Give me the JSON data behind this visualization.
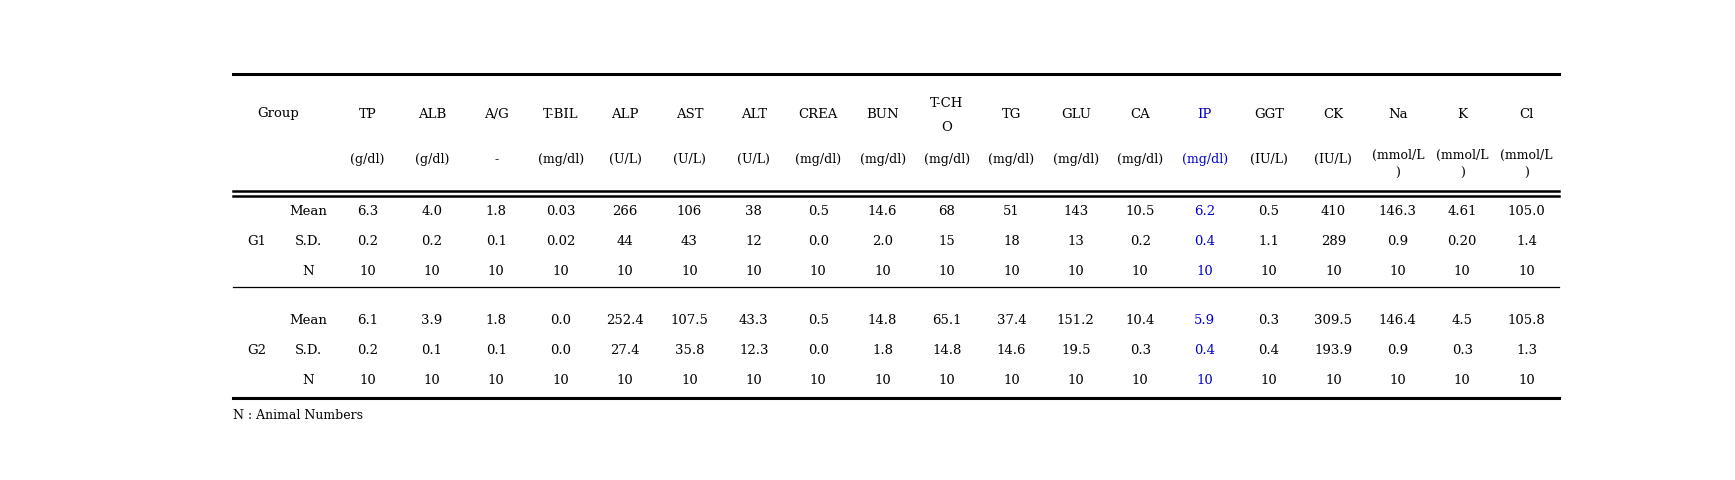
{
  "col_names": [
    "TP",
    "ALB",
    "A/G",
    "T-BIL",
    "ALP",
    "AST",
    "ALT",
    "CREA",
    "BUN",
    "T-CHO",
    "TG",
    "GLU",
    "CA",
    "IP",
    "GGT",
    "CK",
    "Na",
    "K",
    "Cl"
  ],
  "col_units": [
    "(g/dl)",
    "(g/dl)",
    "-",
    "(mg/dl)",
    "(U/L)",
    "(U/L)",
    "(U/L)",
    "(mg/dl)",
    "(mg/dl)",
    "(mg/dl)",
    "(mg/dl)",
    "(mg/dl)",
    "(mg/dl)",
    "(mg/dl)",
    "(IU/L)",
    "(IU/L)",
    "(mmol/L\n)",
    "(mmol/L\n)",
    "(mmol/L\n)"
  ],
  "group_label": "Group",
  "g1_label": "G1",
  "g2_label": "G2",
  "stat_labels": [
    "Mean",
    "S.D.",
    "N"
  ],
  "g1_data": [
    [
      "6.3",
      "4.0",
      "1.8",
      "0.03",
      "266",
      "106",
      "38",
      "0.5",
      "14.6",
      "68",
      "51",
      "143",
      "10.5",
      "6.2",
      "0.5",
      "410",
      "146.3",
      "4.61",
      "105.0"
    ],
    [
      "0.2",
      "0.2",
      "0.1",
      "0.02",
      "44",
      "43",
      "12",
      "0.0",
      "2.0",
      "15",
      "18",
      "13",
      "0.2",
      "0.4",
      "1.1",
      "289",
      "0.9",
      "0.20",
      "1.4"
    ],
    [
      "10",
      "10",
      "10",
      "10",
      "10",
      "10",
      "10",
      "10",
      "10",
      "10",
      "10",
      "10",
      "10",
      "10",
      "10",
      "10",
      "10",
      "10",
      "10"
    ]
  ],
  "g2_data": [
    [
      "6.1",
      "3.9",
      "1.8",
      "0.0",
      "252.4",
      "107.5",
      "43.3",
      "0.5",
      "14.8",
      "65.1",
      "37.4",
      "151.2",
      "10.4",
      "5.9",
      "0.3",
      "309.5",
      "146.4",
      "4.5",
      "105.8"
    ],
    [
      "0.2",
      "0.1",
      "0.1",
      "0.0",
      "27.4",
      "35.8",
      "12.3",
      "0.0",
      "1.8",
      "14.8",
      "14.6",
      "19.5",
      "0.3",
      "0.4",
      "0.4",
      "193.9",
      "0.9",
      "0.3",
      "1.3"
    ],
    [
      "10",
      "10",
      "10",
      "10",
      "10",
      "10",
      "10",
      "10",
      "10",
      "10",
      "10",
      "10",
      "10",
      "10",
      "10",
      "10",
      "10",
      "10",
      "10"
    ]
  ],
  "ip_col_idx": 13,
  "ip_color": "#0000CD",
  "normal_color": "#000000",
  "footnote": "N : Animal Numbers",
  "background_color": "#FFFFFF",
  "fontsize": 9.5,
  "header_fontsize": 9.5
}
